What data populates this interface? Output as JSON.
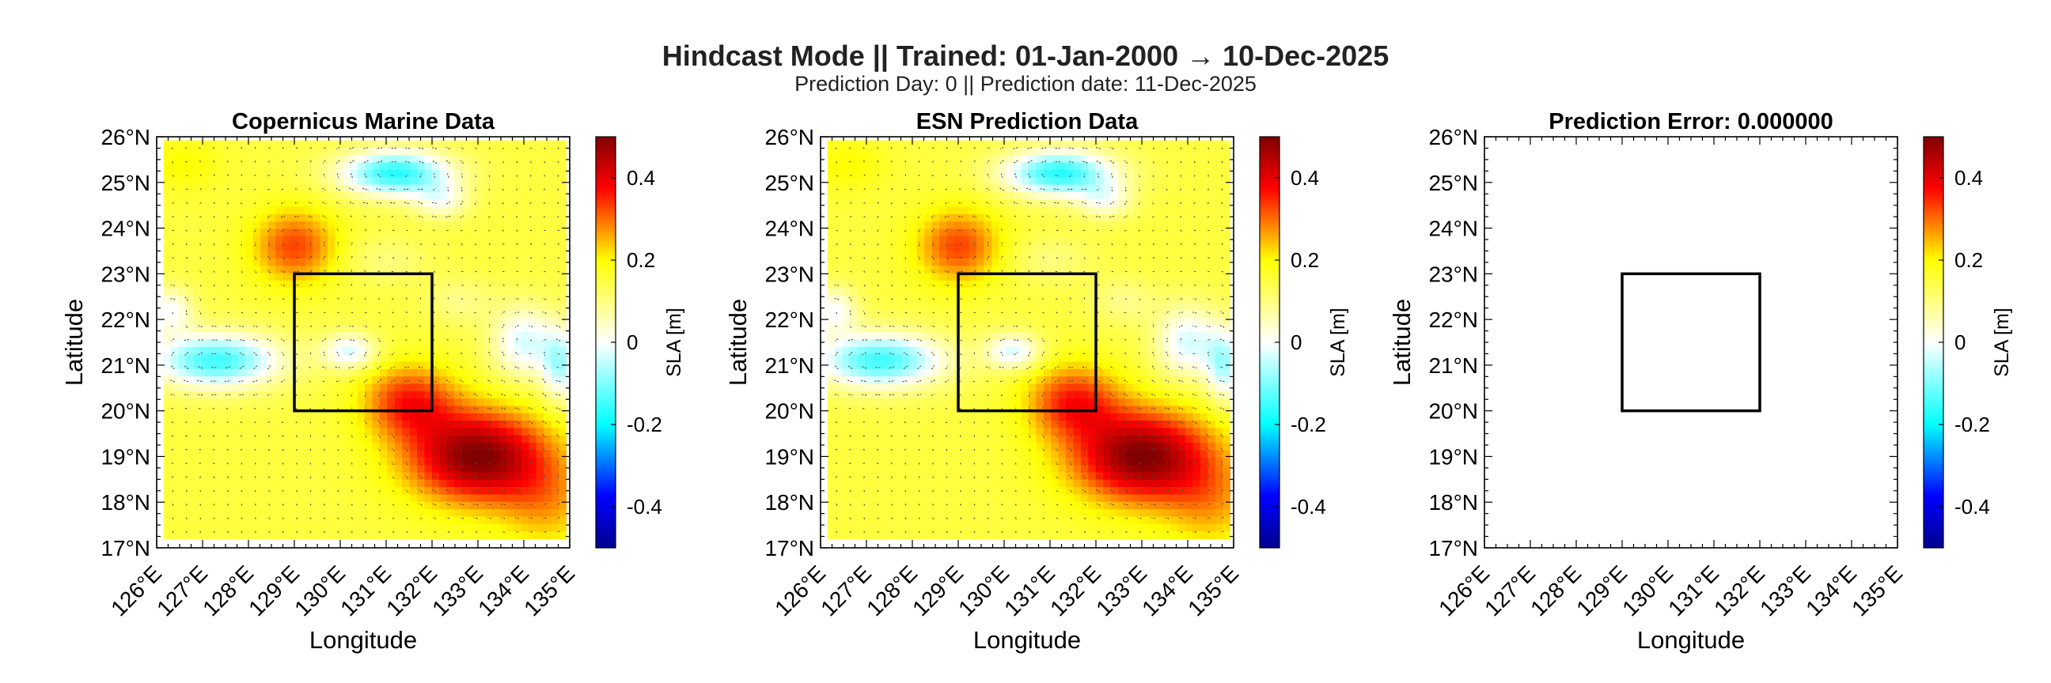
{
  "figure": {
    "title": "Hindcast Mode || Trained: 01-Jan-2000 → 10-Dec-2025",
    "subtitle": "Prediction Day: 0 || Prediction date: 11-Dec-2025"
  },
  "chart_data": [
    {
      "type": "heatmap",
      "title": "Copernicus Marine Data",
      "xlabel": "Longitude",
      "ylabel": "Latitude",
      "xlim": [
        126,
        135
      ],
      "ylim": [
        17,
        26
      ],
      "xticks": [
        "126°E",
        "127°E",
        "128°E",
        "129°E",
        "130°E",
        "131°E",
        "132°E",
        "133°E",
        "134°E",
        "135°E"
      ],
      "yticks": [
        "17°N",
        "18°N",
        "19°N",
        "20°N",
        "21°N",
        "22°N",
        "23°N",
        "24°N",
        "25°N",
        "26°N"
      ],
      "field": "sla",
      "quiver": true,
      "region_box": {
        "lon": [
          129,
          132
        ],
        "lat": [
          20,
          23
        ]
      },
      "colorbar": {
        "label": "SLA [m]",
        "range": [
          -0.5,
          0.5
        ],
        "ticks": [
          "-0.4",
          "-0.2",
          "0",
          "0.2",
          "0.4"
        ]
      }
    },
    {
      "type": "heatmap",
      "title": "ESN Prediction Data",
      "xlabel": "Longitude",
      "ylabel": "Latitude",
      "xlim": [
        126,
        135
      ],
      "ylim": [
        17,
        26
      ],
      "xticks": [
        "126°E",
        "127°E",
        "128°E",
        "129°E",
        "130°E",
        "131°E",
        "132°E",
        "133°E",
        "134°E",
        "135°E"
      ],
      "yticks": [
        "17°N",
        "18°N",
        "19°N",
        "20°N",
        "21°N",
        "22°N",
        "23°N",
        "24°N",
        "25°N",
        "26°N"
      ],
      "field": "sla",
      "quiver": true,
      "region_box": {
        "lon": [
          129,
          132
        ],
        "lat": [
          20,
          23
        ]
      },
      "colorbar": {
        "label": "SLA [m]",
        "range": [
          -0.5,
          0.5
        ],
        "ticks": [
          "-0.4",
          "-0.2",
          "0",
          "0.2",
          "0.4"
        ]
      }
    },
    {
      "type": "heatmap",
      "title": "Prediction Error: 0.000000",
      "xlabel": "Longitude",
      "ylabel": "Latitude",
      "xlim": [
        126,
        135
      ],
      "ylim": [
        17,
        26
      ],
      "xticks": [
        "126°E",
        "127°E",
        "128°E",
        "129°E",
        "130°E",
        "131°E",
        "132°E",
        "133°E",
        "134°E",
        "135°E"
      ],
      "yticks": [
        "17°N",
        "18°N",
        "19°N",
        "20°N",
        "21°N",
        "22°N",
        "23°N",
        "24°N",
        "25°N",
        "26°N"
      ],
      "field": "none",
      "quiver": false,
      "region_box": {
        "lon": [
          129,
          132
        ],
        "lat": [
          20,
          23
        ]
      },
      "colorbar": {
        "label": "SLA [m]",
        "range": [
          -0.5,
          0.5
        ],
        "ticks": [
          "-0.4",
          "-0.2",
          "0",
          "0.2",
          "0.4"
        ]
      }
    }
  ],
  "sla_field": {
    "description": "approximate SLA anomalies in metres (centre lon, centre lat, amplitude, lon spread, lat spread)",
    "background": 0.15,
    "blobs": [
      [
        133.0,
        19.0,
        0.35,
        1.5,
        1.0
      ],
      [
        131.5,
        20.2,
        0.2,
        1.0,
        0.8
      ],
      [
        134.5,
        18.0,
        0.1,
        1.0,
        1.0
      ],
      [
        129.0,
        23.6,
        0.18,
        0.9,
        0.8
      ],
      [
        126.6,
        25.4,
        0.05,
        0.8,
        0.6
      ],
      [
        131.2,
        25.2,
        -0.32,
        1.2,
        0.5
      ],
      [
        132.2,
        24.6,
        -0.12,
        0.6,
        0.4
      ],
      [
        127.3,
        21.1,
        -0.3,
        1.4,
        0.6
      ],
      [
        126.3,
        22.2,
        -0.15,
        0.5,
        0.5
      ],
      [
        130.2,
        21.3,
        -0.18,
        0.6,
        0.4
      ],
      [
        134.0,
        21.5,
        -0.18,
        0.7,
        0.8
      ],
      [
        134.8,
        21.0,
        -0.2,
        0.4,
        0.8
      ],
      [
        132.6,
        22.4,
        -0.06,
        0.7,
        0.5
      ],
      [
        131.0,
        23.3,
        -0.05,
        0.9,
        0.5
      ]
    ]
  }
}
